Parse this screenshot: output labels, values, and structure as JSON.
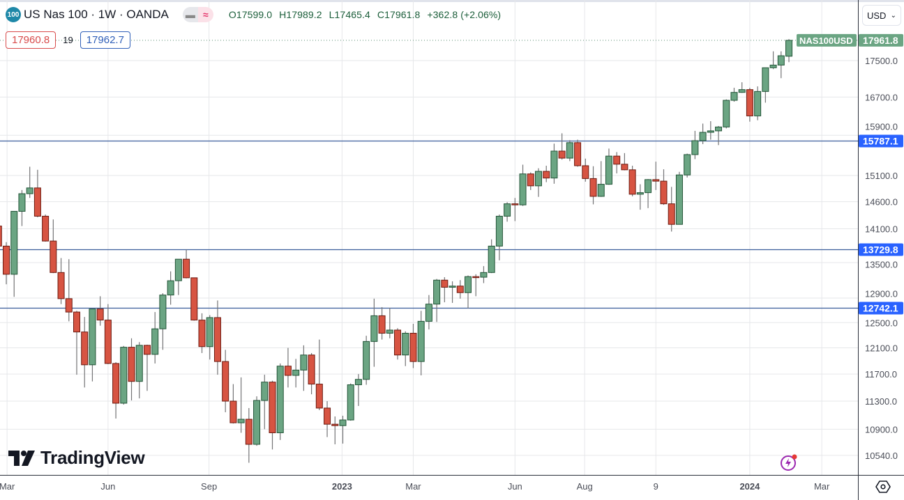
{
  "header": {
    "symbol_badge": "100",
    "title": "US Nas 100 · 1W · OANDA",
    "ohlc": {
      "open": "O17599.0",
      "high": "H17989.2",
      "low": "L17465.4",
      "close": "C17961.8",
      "change": "+362.8 (+2.06%)"
    },
    "sell_price": "17960.8",
    "spread": "19",
    "buy_price": "17962.7",
    "currency": "USD"
  },
  "branding": {
    "logo_text": "TradingView"
  },
  "colors": {
    "up": "#6ba583",
    "up_border": "#225437",
    "down": "#d75442",
    "down_border": "#6b1a10",
    "wick": "#737375",
    "level_line": "#3b5e9b",
    "level_label": "#2962ff",
    "last_price": "#6ba583",
    "grid": "#e6e7ea"
  },
  "chart_data": {
    "type": "candlestick",
    "title": "US Nas 100 · 1W · OANDA",
    "yscale": "log",
    "ylim": [
      10278,
      18917
    ],
    "xlim": [
      -0.2,
      115
    ],
    "grid": true,
    "y_ticks": [
      "17500.0",
      "16700.0",
      "15900.0",
      "15100.0",
      "14600.0",
      "14100.0",
      "13500.0",
      "12900.0",
      "12500.0",
      "12100.0",
      "11700.0",
      "11300.0",
      "10900.0",
      "10540.0"
    ],
    "x_ticks": [
      {
        "label": "Mar",
        "index": 1.1
      },
      {
        "label": "Jun",
        "index": 14.0
      },
      {
        "label": "Sep",
        "index": 26.9
      },
      {
        "label": "2023",
        "index": 43.9,
        "bold": true
      },
      {
        "label": "Mar",
        "index": 53.0
      },
      {
        "label": "Jun",
        "index": 66.0
      },
      {
        "label": "Aug",
        "index": 74.9
      },
      {
        "label": "9",
        "index": 84.0
      },
      {
        "label": "2024",
        "index": 96.0,
        "bold": true
      },
      {
        "label": "Mar",
        "index": 105.2
      }
    ],
    "horizontal_levels": [
      "15787.1",
      "13729.8",
      "12742.1"
    ],
    "last_price": {
      "symbol": "NAS100USD",
      "value": "17961.8"
    },
    "ohlc_fields": [
      "open",
      "high",
      "low",
      "close"
    ],
    "candles": [
      [
        14150,
        14200,
        13790,
        13790
      ],
      [
        13790,
        13860,
        13130,
        13300
      ],
      [
        13300,
        14420,
        12920,
        14420
      ],
      [
        14420,
        14820,
        14150,
        14750
      ],
      [
        14750,
        15270,
        14670,
        14860
      ],
      [
        14860,
        15210,
        14310,
        14330
      ],
      [
        14330,
        14360,
        13870,
        13880
      ],
      [
        13880,
        14270,
        13320,
        13330
      ],
      [
        13330,
        13580,
        12800,
        12890
      ],
      [
        12890,
        13560,
        12520,
        12670
      ],
      [
        12670,
        12690,
        11690,
        12350
      ],
      [
        12350,
        12590,
        11500,
        11840
      ],
      [
        11840,
        12720,
        11590,
        12720
      ],
      [
        12720,
        12930,
        12450,
        12540
      ],
      [
        12540,
        12800,
        11850,
        11860
      ],
      [
        11860,
        11880,
        11050,
        11270
      ],
      [
        11270,
        12130,
        11250,
        12110
      ],
      [
        12110,
        12250,
        11310,
        11590
      ],
      [
        11590,
        12190,
        11340,
        12140
      ],
      [
        12140,
        12150,
        11450,
        12000
      ],
      [
        12000,
        12670,
        11860,
        12400
      ],
      [
        12400,
        12980,
        12070,
        12950
      ],
      [
        12950,
        13350,
        12790,
        13190
      ],
      [
        13190,
        13560,
        12950,
        13560
      ],
      [
        13560,
        13730,
        13230,
        13240
      ],
      [
        13240,
        13240,
        12530,
        12540
      ],
      [
        12540,
        12650,
        12020,
        12120
      ],
      [
        12120,
        12620,
        11920,
        12580
      ],
      [
        12580,
        12860,
        11690,
        11890
      ],
      [
        11890,
        12070,
        11140,
        11300
      ],
      [
        11300,
        11550,
        10980,
        10990
      ],
      [
        10990,
        11650,
        10850,
        11040
      ],
      [
        11040,
        11200,
        10440,
        10690
      ],
      [
        10690,
        11370,
        10670,
        11310
      ],
      [
        11310,
        11690,
        10900,
        11580
      ],
      [
        11580,
        11600,
        10620,
        10850
      ],
      [
        10850,
        11860,
        10750,
        11820
      ],
      [
        11820,
        12100,
        11500,
        11680
      ],
      [
        11680,
        11930,
        11500,
        11760
      ],
      [
        11760,
        12140,
        11450,
        11990
      ],
      [
        11990,
        12020,
        11400,
        11550
      ],
      [
        11550,
        12230,
        11170,
        11200
      ],
      [
        11200,
        11300,
        10790,
        10970
      ],
      [
        10970,
        11080,
        10690,
        10950
      ],
      [
        10950,
        11090,
        10700,
        11030
      ],
      [
        11030,
        11560,
        11020,
        11540
      ],
      [
        11540,
        11700,
        11230,
        11620
      ],
      [
        11620,
        12290,
        11540,
        12200
      ],
      [
        12200,
        12890,
        11810,
        12610
      ],
      [
        12610,
        12750,
        12230,
        12330
      ],
      [
        12330,
        12740,
        12250,
        12380
      ],
      [
        12380,
        12410,
        11920,
        11990
      ],
      [
        11990,
        12360,
        11820,
        12330
      ],
      [
        12330,
        12480,
        11790,
        11890
      ],
      [
        11890,
        12690,
        11680,
        12520
      ],
      [
        12520,
        12950,
        12390,
        12800
      ],
      [
        12800,
        13220,
        12510,
        13200
      ],
      [
        13200,
        13250,
        12830,
        13080
      ],
      [
        13080,
        13180,
        12820,
        13100
      ],
      [
        13100,
        13200,
        12890,
        12990
      ],
      [
        12990,
        13280,
        12730,
        13260
      ],
      [
        13260,
        13300,
        12930,
        13250
      ],
      [
        13250,
        13440,
        13150,
        13330
      ],
      [
        13330,
        13910,
        13320,
        13790
      ],
      [
        13790,
        14360,
        13540,
        14330
      ],
      [
        14330,
        14590,
        14230,
        14560
      ],
      [
        14560,
        14670,
        14240,
        14540
      ],
      [
        14540,
        15310,
        14520,
        15130
      ],
      [
        15130,
        15160,
        14820,
        14900
      ],
      [
        14900,
        15240,
        14690,
        15180
      ],
      [
        15180,
        15290,
        14970,
        15050
      ],
      [
        15050,
        15730,
        14940,
        15580
      ],
      [
        15580,
        15940,
        15410,
        15440
      ],
      [
        15440,
        15800,
        15380,
        15750
      ],
      [
        15750,
        15810,
        15270,
        15290
      ],
      [
        15290,
        15430,
        14980,
        15040
      ],
      [
        15040,
        15280,
        14550,
        14700
      ],
      [
        14700,
        15380,
        14690,
        14930
      ],
      [
        14930,
        15630,
        14920,
        15480
      ],
      [
        15480,
        15560,
        15140,
        15320
      ],
      [
        15320,
        15540,
        15200,
        15210
      ],
      [
        15210,
        15290,
        14700,
        14740
      ],
      [
        14740,
        14930,
        14450,
        14770
      ],
      [
        14770,
        15030,
        14480,
        15020
      ],
      [
        15020,
        15370,
        14820,
        14990
      ],
      [
        14990,
        15220,
        14540,
        14560
      ],
      [
        14560,
        14880,
        14050,
        14180
      ],
      [
        14180,
        15170,
        14180,
        15110
      ],
      [
        15110,
        15530,
        15060,
        15510
      ],
      [
        15510,
        15990,
        15420,
        15790
      ],
      [
        15790,
        16140,
        15720,
        15960
      ],
      [
        15960,
        16190,
        15810,
        15990
      ],
      [
        15990,
        16090,
        15700,
        16070
      ],
      [
        16070,
        16650,
        16040,
        16630
      ],
      [
        16630,
        16900,
        16600,
        16800
      ],
      [
        16800,
        17020,
        16790,
        16860
      ],
      [
        16860,
        16900,
        16180,
        16300
      ],
      [
        16300,
        16930,
        16210,
        16820
      ],
      [
        16820,
        17340,
        16580,
        17340
      ],
      [
        17340,
        17710,
        17310,
        17400
      ],
      [
        17400,
        17710,
        17110,
        17610
      ],
      [
        17599.0,
        17989.2,
        17465.4,
        17961.8
      ]
    ]
  }
}
